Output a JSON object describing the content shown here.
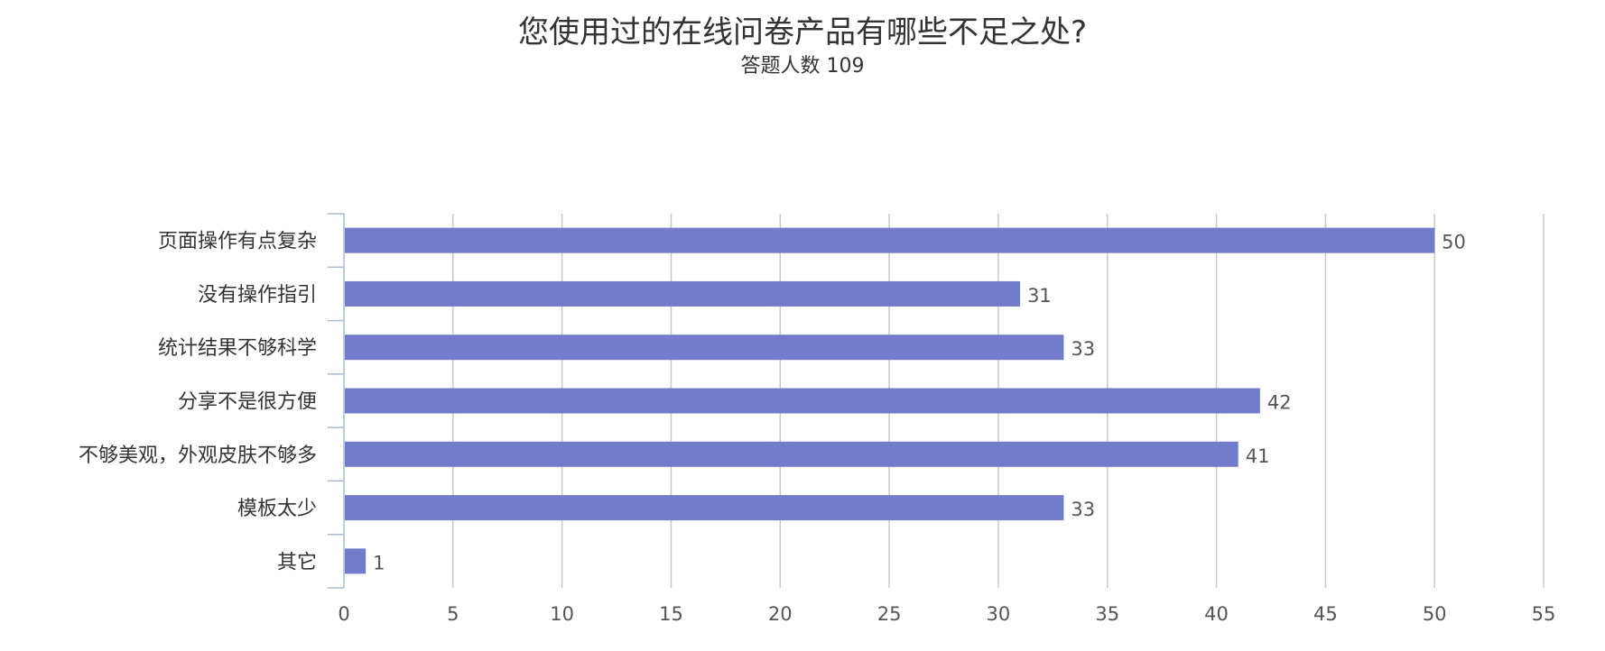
{
  "chart_data": {
    "type": "bar",
    "orientation": "horizontal",
    "title": "您使用过的在线问卷产品有哪些不足之处?",
    "subtitle": "答题人数 109",
    "categories": [
      "页面操作有点复杂",
      "没有操作指引",
      "统计结果不够科学",
      "分享不是很方便",
      "不够美观，外观皮肤不够多",
      "模板太少",
      "其它"
    ],
    "values": [
      50,
      31,
      33,
      42,
      41,
      33,
      1
    ],
    "xlim": [
      0,
      55
    ],
    "xticks": [
      0,
      5,
      10,
      15,
      20,
      25,
      30,
      35,
      40,
      45,
      50,
      55
    ],
    "grid": true,
    "bar_color": "#737bcb"
  }
}
